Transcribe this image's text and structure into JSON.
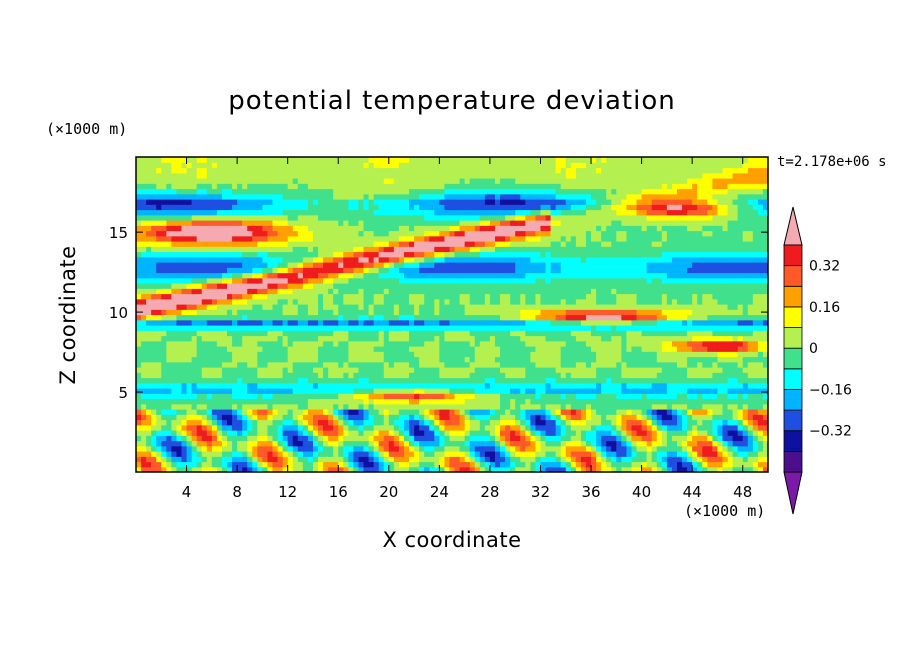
{
  "chart_data": {
    "type": "heatmap",
    "title": "potential temperature deviation",
    "time_label": "t=2.178e+06 s",
    "xlabel": "X coordinate",
    "ylabel": "Z coordinate",
    "x_unit": "(×1000 m)",
    "y_unit": "(×1000 m)",
    "xlim": [
      0,
      50
    ],
    "ylim": [
      0,
      19.7
    ],
    "x_ticks": [
      4,
      8,
      12,
      16,
      20,
      24,
      28,
      32,
      36,
      40,
      44,
      48
    ],
    "y_ticks": [
      5,
      10,
      15
    ],
    "colorbar": {
      "levels": [
        -0.48,
        -0.4,
        -0.32,
        -0.24,
        -0.16,
        -0.08,
        0,
        0.08,
        0.16,
        0.24,
        0.32,
        0.4,
        0.48
      ],
      "tick_values": [
        0.32,
        0.16,
        0,
        -0.16,
        -0.32
      ],
      "tick_labels": [
        "0.32",
        "0.16",
        "0",
        "−0.16",
        "−0.32"
      ],
      "colors": [
        "#7a1aa6",
        "#4b0f8c",
        "#1010a0",
        "#1f4fe0",
        "#00b4ff",
        "#00ffff",
        "#40e08c",
        "#b4f050",
        "#ffff00",
        "#ffa000",
        "#ff5a28",
        "#ee1c1c",
        "#f5a9b0"
      ]
    }
  }
}
